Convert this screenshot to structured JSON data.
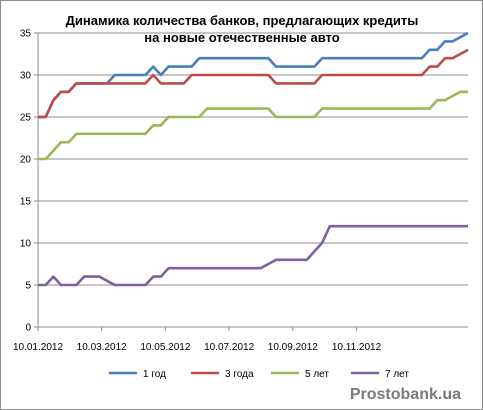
{
  "chart_data": {
    "type": "line",
    "title_lines": [
      "Динамика количества банков, предлагающих кредиты",
      "на новые отечественные авто"
    ],
    "xlabel": "",
    "ylabel": "",
    "ylim": [
      0,
      35
    ],
    "y_ticks": [
      0,
      5,
      10,
      15,
      20,
      25,
      30,
      35
    ],
    "x_tick_labels": [
      "10.01.2012",
      "10.03.2012",
      "10.05.2012",
      "10.07.2012",
      "10.09.2012",
      "10.11.2012"
    ],
    "grid": {
      "horizontal": true,
      "vertical": false
    },
    "legend_position": "bottom",
    "watermark": "Prostobank.ua",
    "series": [
      {
        "name": "1 год",
        "color": "#4a7ebb",
        "values": [
          25,
          25,
          27,
          28,
          28,
          29,
          29,
          29,
          29,
          29,
          30,
          30,
          30,
          30,
          30,
          31,
          30,
          31,
          31,
          31,
          31,
          32,
          32,
          32,
          32,
          32,
          32,
          32,
          32,
          32,
          32,
          31,
          31,
          31,
          31,
          31,
          31,
          32,
          32,
          32,
          32,
          32,
          32,
          32,
          32,
          32,
          32,
          32,
          32,
          32,
          32,
          33,
          33,
          34,
          34,
          34.5,
          35
        ]
      },
      {
        "name": "3 года",
        "color": "#be4b48",
        "values": [
          25,
          25,
          27,
          28,
          28,
          29,
          29,
          29,
          29,
          29,
          29,
          29,
          29,
          29,
          29,
          30,
          29,
          29,
          29,
          29,
          30,
          30,
          30,
          30,
          30,
          30,
          30,
          30,
          30,
          30,
          30,
          29,
          29,
          29,
          29,
          29,
          29,
          30,
          30,
          30,
          30,
          30,
          30,
          30,
          30,
          30,
          30,
          30,
          30,
          30,
          30,
          31,
          31,
          32,
          32,
          32.5,
          33
        ]
      },
      {
        "name": "5 лет",
        "color": "#98b954",
        "values": [
          20,
          20,
          21,
          22,
          22,
          23,
          23,
          23,
          23,
          23,
          23,
          23,
          23,
          23,
          23,
          24,
          24,
          25,
          25,
          25,
          25,
          25,
          26,
          26,
          26,
          26,
          26,
          26,
          26,
          26,
          26,
          25,
          25,
          25,
          25,
          25,
          25,
          26,
          26,
          26,
          26,
          26,
          26,
          26,
          26,
          26,
          26,
          26,
          26,
          26,
          26,
          26,
          27,
          27,
          27.5,
          28,
          28
        ]
      },
      {
        "name": "7 лет",
        "color": "#7d60a0",
        "values": [
          5,
          5,
          6,
          5,
          5,
          5,
          6,
          6,
          6,
          5.5,
          5,
          5,
          5,
          5,
          5,
          6,
          6,
          7,
          7,
          7,
          7,
          7,
          7,
          7,
          7,
          7,
          7,
          7,
          7,
          7,
          7.5,
          8,
          8,
          8,
          8,
          8,
          9,
          10,
          12,
          12,
          12,
          12,
          12,
          12,
          12,
          12,
          12,
          12,
          12,
          12,
          12,
          12,
          12,
          12,
          12,
          12,
          12
        ]
      }
    ]
  }
}
